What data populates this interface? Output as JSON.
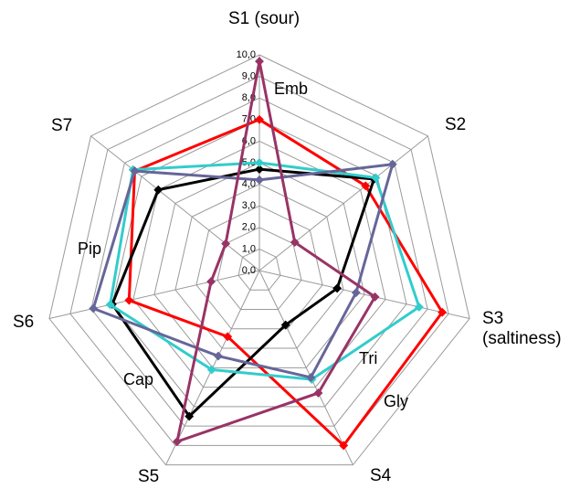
{
  "chart_data": {
    "type": "radar",
    "categories": [
      "S1 (sour)",
      "S2",
      "S3 (saltiness)",
      "S4",
      "S5",
      "S6",
      "S7"
    ],
    "series": [
      {
        "color": "#ff0000",
        "values": [
          7.0,
          6.3,
          8.7,
          9.0,
          3.4,
          6.2,
          7.4
        ]
      },
      {
        "color": "#000000",
        "values": [
          4.7,
          6.8,
          3.7,
          2.8,
          7.5,
          7.0,
          6.0
        ]
      },
      {
        "color": "#33cccc",
        "values": [
          5.0,
          6.9,
          7.6,
          5.6,
          5.1,
          7.1,
          7.5
        ]
      },
      {
        "color": "#666699",
        "values": [
          4.2,
          7.9,
          4.6,
          5.5,
          4.4,
          7.9,
          7.4
        ]
      },
      {
        "color": "#993366",
        "values": [
          9.7,
          2.1,
          5.5,
          6.3,
          8.8,
          2.3,
          2.0
        ]
      }
    ],
    "ylim": [
      0,
      10
    ],
    "yticks": [
      {
        "value": 0,
        "label": "0,0"
      },
      {
        "value": 1,
        "label": "1,0"
      },
      {
        "value": 2,
        "label": "2,0"
      },
      {
        "value": 3,
        "label": "3,0"
      },
      {
        "value": 4,
        "label": "4,0"
      },
      {
        "value": 5,
        "label": "5,0"
      },
      {
        "value": 6,
        "label": "6,0"
      },
      {
        "value": 7,
        "label": "7,0"
      },
      {
        "value": 8,
        "label": "8,0"
      },
      {
        "value": 9,
        "label": "9,0"
      },
      {
        "value": 10,
        "label": "10,0"
      }
    ],
    "grid": true,
    "annotations": [
      "Emb",
      "Tri",
      "Gly",
      "Cap",
      "Pip"
    ]
  }
}
